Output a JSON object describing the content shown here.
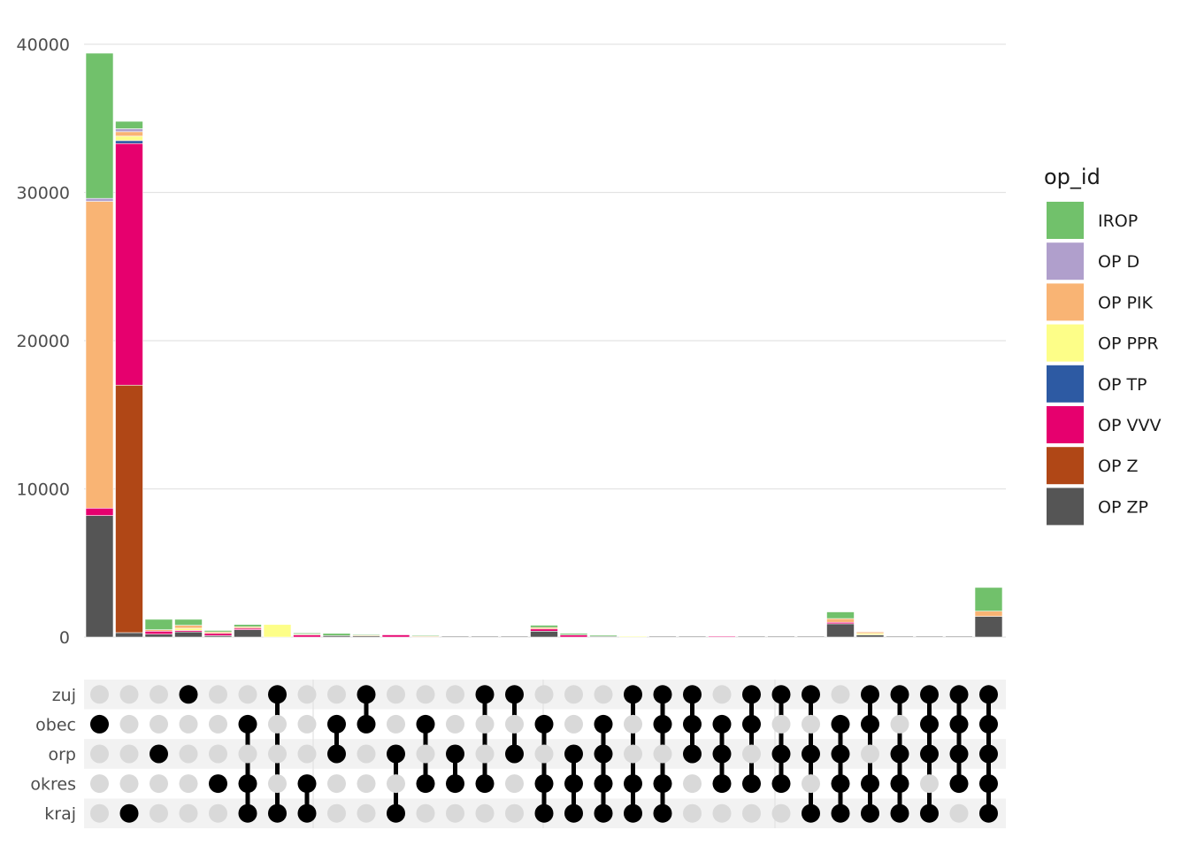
{
  "chart_data": {
    "type": "bar",
    "stacked": true,
    "ylim": [
      0,
      40000
    ],
    "yticks": [
      0,
      10000,
      20000,
      30000,
      40000
    ],
    "grid": true,
    "legend": {
      "title": "op_id",
      "placement": "right",
      "items": [
        {
          "label": "IROP",
          "color": "#71c16b"
        },
        {
          "label": "OP D",
          "color": "#b09fcc"
        },
        {
          "label": "OP PIK",
          "color": "#f9b474"
        },
        {
          "label": "OP PPR",
          "color": "#fdfe88"
        },
        {
          "label": "OP TP",
          "color": "#2d5aa3"
        },
        {
          "label": "OP VVV",
          "color": "#e6006e"
        },
        {
          "label": "OP Z",
          "color": "#b04716"
        },
        {
          "label": "OP ZP",
          "color": "#555555"
        }
      ]
    },
    "set_labels": [
      "zuj",
      "obec",
      "orp",
      "okres",
      "kraj"
    ],
    "columns": [
      {
        "sets": [
          "obec"
        ],
        "stack": {
          "OP ZP": 8200,
          "OP VVV": 500,
          "OP PIK": 20700,
          "OP D": 200,
          "IROP": 9800
        }
      },
      {
        "sets": [
          "kraj"
        ],
        "stack": {
          "OP ZP": 300,
          "OP Z": 16700,
          "OP VVV": 16300,
          "OP TP": 200,
          "OP PPR": 300,
          "OP PIK": 300,
          "OP D": 200,
          "IROP": 500
        }
      },
      {
        "sets": [
          "orp"
        ],
        "stack": {
          "OP ZP": 200,
          "OP VVV": 200,
          "OP PIK": 100,
          "IROP": 700
        }
      },
      {
        "sets": [
          "zuj"
        ],
        "stack": {
          "OP ZP": 350,
          "OP VVV": 100,
          "OP PPR": 150,
          "OP PIK": 200,
          "IROP": 400
        }
      },
      {
        "sets": [
          "okres"
        ],
        "stack": {
          "OP ZP": 100,
          "OP VVV": 150,
          "OP PIK": 100,
          "IROP": 100
        }
      },
      {
        "sets": [
          "obec",
          "okres",
          "kraj"
        ],
        "stack": {
          "OP ZP": 500,
          "OP VVV": 100,
          "OP PIK": 100,
          "IROP": 150
        }
      },
      {
        "sets": [
          "zuj",
          "kraj"
        ],
        "stack": {
          "OP PPR": 850
        }
      },
      {
        "sets": [
          "okres",
          "kraj"
        ],
        "stack": {
          "OP VVV": 150,
          "OP PIK": 50,
          "IROP": 80
        }
      },
      {
        "sets": [
          "obec",
          "orp"
        ],
        "stack": {
          "OP ZP": 100,
          "IROP": 150
        }
      },
      {
        "sets": [
          "zuj",
          "obec"
        ],
        "stack": {
          "OP ZP": 80,
          "OP PIK": 50,
          "IROP": 60
        }
      },
      {
        "sets": [
          "orp",
          "kraj"
        ],
        "stack": {
          "OP VVV": 150
        }
      },
      {
        "sets": [
          "obec",
          "okres"
        ],
        "stack": {
          "OP PIK": 60,
          "IROP": 20
        }
      },
      {
        "sets": [
          "orp",
          "okres"
        ],
        "stack": {
          "OP ZP": 30
        }
      },
      {
        "sets": [
          "zuj",
          "okres"
        ],
        "stack": {
          "OP ZP": 10
        }
      },
      {
        "sets": [
          "zuj",
          "orp"
        ],
        "stack": {
          "OP ZP": 10
        }
      },
      {
        "sets": [
          "obec",
          "okres",
          "kraj"
        ],
        "stack": {
          "OP ZP": 400,
          "OP VVV": 150,
          "OP PIK": 100,
          "IROP": 150
        }
      },
      {
        "sets": [
          "orp",
          "okres",
          "kraj"
        ],
        "stack": {
          "OP VVV": 150,
          "IROP": 100
        }
      },
      {
        "sets": [
          "obec",
          "orp",
          "okres",
          "kraj"
        ],
        "stack": {
          "OP ZP": 60,
          "IROP": 80
        }
      },
      {
        "sets": [
          "zuj",
          "okres",
          "kraj"
        ],
        "stack": {
          "OP PPR": 60
        }
      },
      {
        "sets": [
          "zuj",
          "obec",
          "okres",
          "kraj"
        ],
        "stack": {
          "OP ZP": 40
        }
      },
      {
        "sets": [
          "zuj",
          "obec",
          "orp"
        ],
        "stack": {
          "OP ZP": 40
        }
      },
      {
        "sets": [
          "obec",
          "orp",
          "okres"
        ],
        "stack": {
          "OP VVV": 30
        }
      },
      {
        "sets": [
          "zuj",
          "obec",
          "okres"
        ],
        "stack": {
          "OP ZP": 10
        }
      },
      {
        "sets": [
          "zuj",
          "orp",
          "okres"
        ],
        "stack": {
          "OP ZP": 10
        }
      },
      {
        "sets": [
          "zuj",
          "orp",
          "kraj"
        ],
        "stack": {
          "OP ZP": 10
        }
      },
      {
        "sets": [
          "obec",
          "orp",
          "okres",
          "kraj"
        ],
        "stack": {
          "OP ZP": 900,
          "OP VVV": 100,
          "OP PIK": 250,
          "IROP": 450
        }
      },
      {
        "sets": [
          "zuj",
          "obec",
          "okres",
          "kraj"
        ],
        "stack": {
          "OP ZP": 150,
          "OP PPR": 100,
          "OP PIK": 100
        }
      },
      {
        "sets": [
          "zuj",
          "orp",
          "okres",
          "kraj"
        ],
        "stack": {
          "OP ZP": 60
        }
      },
      {
        "sets": [
          "zuj",
          "obec",
          "orp",
          "kraj"
        ],
        "stack": {
          "OP ZP": 40
        }
      },
      {
        "sets": [
          "zuj",
          "obec",
          "orp",
          "okres"
        ],
        "stack": {
          "OP ZP": 30
        }
      },
      {
        "sets": [
          "zuj",
          "obec",
          "orp",
          "okres",
          "kraj"
        ],
        "stack": {
          "OP ZP": 1400,
          "OP PIK": 350,
          "IROP": 1600
        }
      }
    ]
  }
}
